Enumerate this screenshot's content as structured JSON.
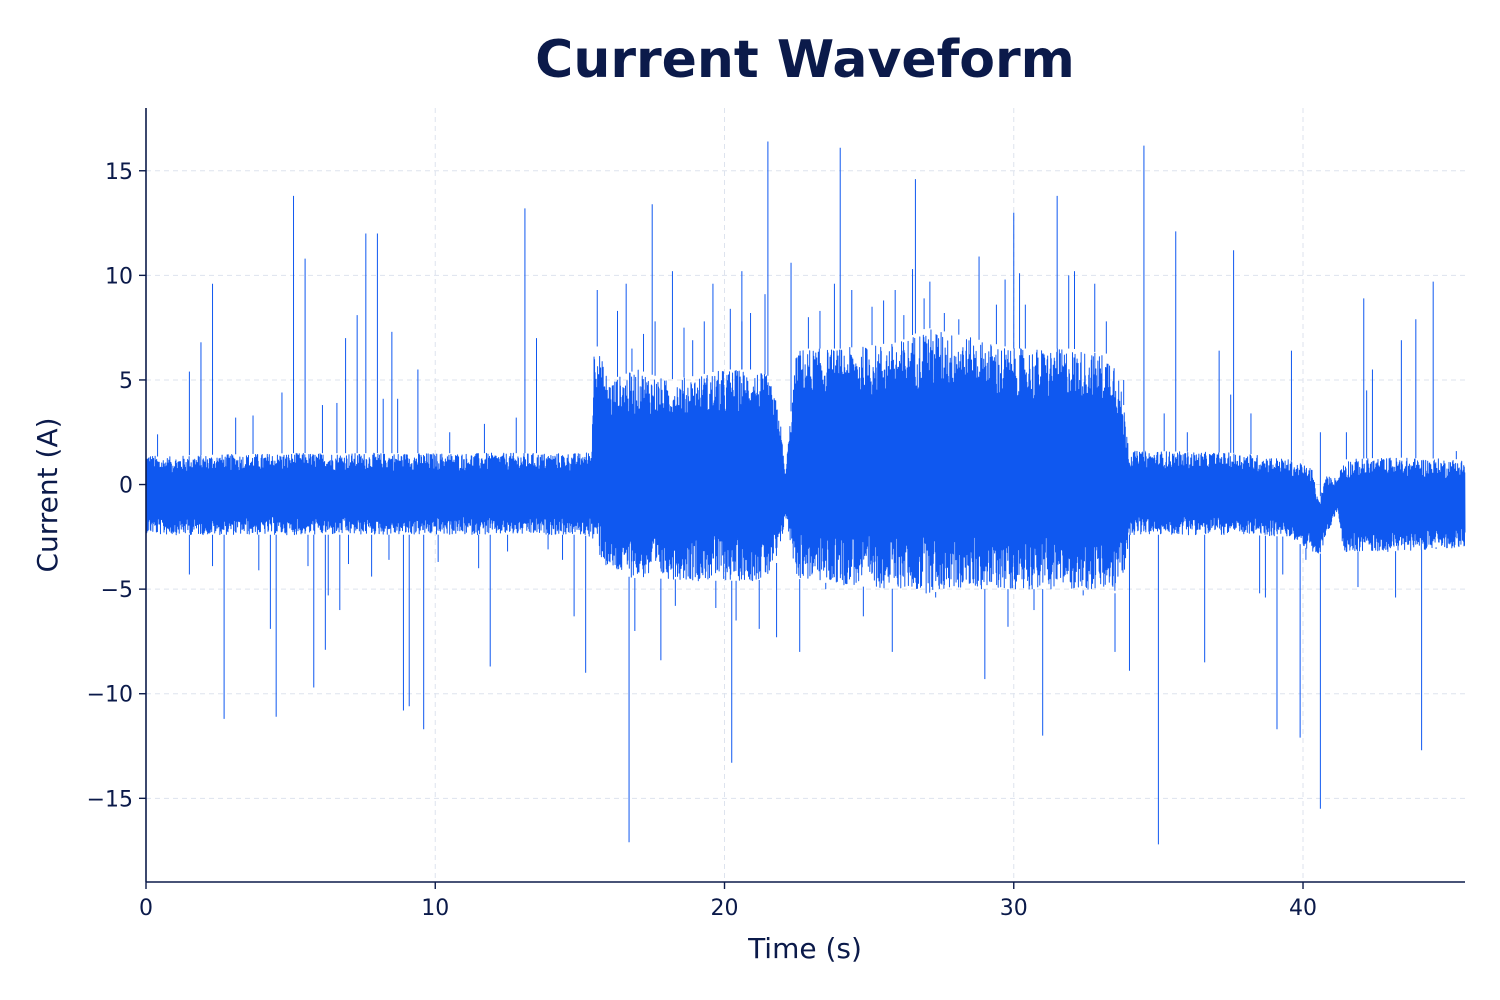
{
  "chart_data": {
    "type": "line",
    "title": "Current Waveform",
    "xlabel": "Time (s)",
    "ylabel": "Current (A)",
    "xlim": [
      0,
      45.6
    ],
    "ylim": [
      -19,
      18
    ],
    "xticks": [
      0,
      10,
      20,
      30,
      40
    ],
    "xtick_labels": [
      "0",
      "10",
      "20",
      "30",
      "40"
    ],
    "yticks": [
      -15,
      -10,
      -5,
      0,
      5,
      10,
      15
    ],
    "ytick_labels": [
      "−15",
      "−10",
      "−5",
      "0",
      "5",
      "10",
      "15"
    ],
    "grid": true,
    "legend": "none",
    "color": "#0f58f0",
    "series": [
      {
        "name": "",
        "envelope": {
          "x": [
            0,
            0.5,
            1.5,
            5,
            10,
            15,
            15.4,
            15.5,
            16,
            17,
            18,
            19,
            20,
            21,
            21.5,
            21.9,
            22.1,
            22.5,
            24,
            26,
            27,
            28,
            30,
            32,
            33.5,
            33.9,
            34,
            35,
            38,
            39.5,
            40.3,
            40.55,
            40.8,
            41.2,
            41.4,
            43,
            45.6
          ],
          "upper": [
            1.5,
            1.3,
            1.4,
            1.5,
            1.5,
            1.5,
            1.6,
            7,
            5,
            5.5,
            5,
            5.2,
            5.5,
            5.5,
            5.2,
            3.5,
            0.5,
            6.5,
            6.5,
            6.8,
            7.5,
            7.2,
            6.5,
            6.5,
            6.2,
            3,
            1.6,
            1.6,
            1.5,
            1.2,
            0.8,
            -0.8,
            0.4,
            0.3,
            1.2,
            1.3,
            1.2
          ],
          "lower": [
            -2.3,
            -2.4,
            -2.4,
            -2.4,
            -2.4,
            -2.4,
            -2.5,
            -3,
            -4.2,
            -4.5,
            -4.5,
            -4.6,
            -4.6,
            -4.6,
            -4.5,
            -3.5,
            -1.5,
            -4.5,
            -4.8,
            -5,
            -5.2,
            -5,
            -5,
            -5,
            -5.2,
            -4,
            -2.4,
            -2.4,
            -2.4,
            -2.5,
            -3.2,
            -3.5,
            -2.5,
            -1.2,
            -3.2,
            -3.2,
            -3
          ]
        },
        "spikes": [
          [
            0.4,
            2.4
          ],
          [
            1.5,
            5.4
          ],
          [
            1.5,
            -4.3
          ],
          [
            1.9,
            6.8
          ],
          [
            2.3,
            9.6
          ],
          [
            2.3,
            -3.9
          ],
          [
            2.7,
            -11.2
          ],
          [
            3.1,
            3.2
          ],
          [
            3.7,
            3.3
          ],
          [
            3.9,
            -4.1
          ],
          [
            4.3,
            -6.9
          ],
          [
            4.5,
            -11.1
          ],
          [
            4.7,
            4.4
          ],
          [
            5.1,
            13.8
          ],
          [
            5.5,
            10.8
          ],
          [
            5.6,
            -3.9
          ],
          [
            5.8,
            -9.7
          ],
          [
            6.1,
            3.8
          ],
          [
            6.2,
            -7.9
          ],
          [
            6.3,
            -5.3
          ],
          [
            6.6,
            3.9
          ],
          [
            6.7,
            -6.0
          ],
          [
            6.9,
            7.0
          ],
          [
            7.0,
            -3.8
          ],
          [
            7.3,
            8.1
          ],
          [
            7.6,
            12.0
          ],
          [
            7.8,
            -4.4
          ],
          [
            8.0,
            12.0
          ],
          [
            8.2,
            4.1
          ],
          [
            8.4,
            -3.6
          ],
          [
            8.5,
            7.3
          ],
          [
            8.7,
            4.1
          ],
          [
            8.9,
            -10.8
          ],
          [
            9.1,
            -10.6
          ],
          [
            9.4,
            5.5
          ],
          [
            9.6,
            -11.7
          ],
          [
            10.1,
            -3.7
          ],
          [
            10.5,
            2.5
          ],
          [
            11.5,
            -4.0
          ],
          [
            11.7,
            2.9
          ],
          [
            11.9,
            -8.7
          ],
          [
            12.5,
            -3.2
          ],
          [
            12.8,
            3.2
          ],
          [
            13.1,
            13.2
          ],
          [
            13.5,
            7.0
          ],
          [
            13.9,
            -3.1
          ],
          [
            14.4,
            -3.6
          ],
          [
            14.8,
            -6.3
          ],
          [
            15.2,
            -9.0
          ],
          [
            15.6,
            9.3
          ],
          [
            16.0,
            -4.2
          ],
          [
            16.3,
            8.3
          ],
          [
            16.6,
            9.6
          ],
          [
            16.7,
            -17.1
          ],
          [
            16.8,
            6.5
          ],
          [
            16.9,
            -7.0
          ],
          [
            17.2,
            7.2
          ],
          [
            17.5,
            13.4
          ],
          [
            17.6,
            7.8
          ],
          [
            17.8,
            -8.4
          ],
          [
            18.2,
            10.2
          ],
          [
            18.3,
            -5.8
          ],
          [
            18.6,
            7.5
          ],
          [
            18.9,
            6.9
          ],
          [
            19.3,
            7.8
          ],
          [
            19.6,
            9.6
          ],
          [
            19.7,
            -5.9
          ],
          [
            20.2,
            8.4
          ],
          [
            20.25,
            -13.3
          ],
          [
            20.4,
            -6.5
          ],
          [
            20.6,
            7.8
          ],
          [
            20.6,
            10.2
          ],
          [
            20.9,
            8.2
          ],
          [
            21.2,
            -6.9
          ],
          [
            21.4,
            9.1
          ],
          [
            21.5,
            16.4
          ],
          [
            21.8,
            -7.3
          ],
          [
            22.3,
            10.6
          ],
          [
            22.6,
            -8.0
          ],
          [
            22.9,
            8.0
          ],
          [
            23.3,
            8.3
          ],
          [
            23.5,
            -5.0
          ],
          [
            23.8,
            9.6
          ],
          [
            24.0,
            16.1
          ],
          [
            24.4,
            9.3
          ],
          [
            24.8,
            -6.3
          ],
          [
            25.1,
            8.5
          ],
          [
            25.5,
            8.8
          ],
          [
            25.8,
            -8.0
          ],
          [
            25.9,
            9.3
          ],
          [
            26.2,
            8.1
          ],
          [
            26.5,
            10.3
          ],
          [
            26.6,
            14.6
          ],
          [
            26.9,
            8.9
          ],
          [
            27.1,
            9.7
          ],
          [
            27.3,
            -5.4
          ],
          [
            27.6,
            8.2
          ],
          [
            28.1,
            7.9
          ],
          [
            28.4,
            -5.0
          ],
          [
            28.8,
            10.9
          ],
          [
            29.0,
            -9.3
          ],
          [
            29.4,
            8.6
          ],
          [
            29.7,
            9.8
          ],
          [
            29.8,
            -6.8
          ],
          [
            30.0,
            13.0
          ],
          [
            30.2,
            10.1
          ],
          [
            30.4,
            8.6
          ],
          [
            30.7,
            -6.0
          ],
          [
            31.0,
            -12.0
          ],
          [
            31.5,
            13.8
          ],
          [
            31.9,
            10.0
          ],
          [
            32.1,
            10.2
          ],
          [
            32.4,
            -5.3
          ],
          [
            32.8,
            9.6
          ],
          [
            33.2,
            7.8
          ],
          [
            33.5,
            -8.0
          ],
          [
            33.8,
            5.0
          ],
          [
            34.0,
            -8.9
          ],
          [
            34.5,
            16.2
          ],
          [
            35.0,
            -17.2
          ],
          [
            35.2,
            3.4
          ],
          [
            35.6,
            12.1
          ],
          [
            36.0,
            2.5
          ],
          [
            36.6,
            -8.5
          ],
          [
            37.1,
            6.4
          ],
          [
            37.5,
            4.3
          ],
          [
            37.6,
            11.2
          ],
          [
            38.2,
            3.4
          ],
          [
            38.5,
            -5.2
          ],
          [
            38.7,
            -5.4
          ],
          [
            39.1,
            -11.7
          ],
          [
            39.3,
            -4.3
          ],
          [
            39.6,
            6.4
          ],
          [
            39.9,
            -12.1
          ],
          [
            40.1,
            -3.6
          ],
          [
            40.6,
            -15.5
          ],
          [
            40.6,
            2.5
          ],
          [
            41.5,
            2.5
          ],
          [
            41.9,
            -4.9
          ],
          [
            42.1,
            8.9
          ],
          [
            42.2,
            4.5
          ],
          [
            42.4,
            5.5
          ],
          [
            43.2,
            -5.4
          ],
          [
            43.4,
            6.9
          ],
          [
            43.9,
            7.9
          ],
          [
            44.1,
            -12.7
          ],
          [
            44.5,
            9.7
          ],
          [
            44.6,
            -3.0
          ],
          [
            45.3,
            1.6
          ]
        ]
      }
    ]
  }
}
